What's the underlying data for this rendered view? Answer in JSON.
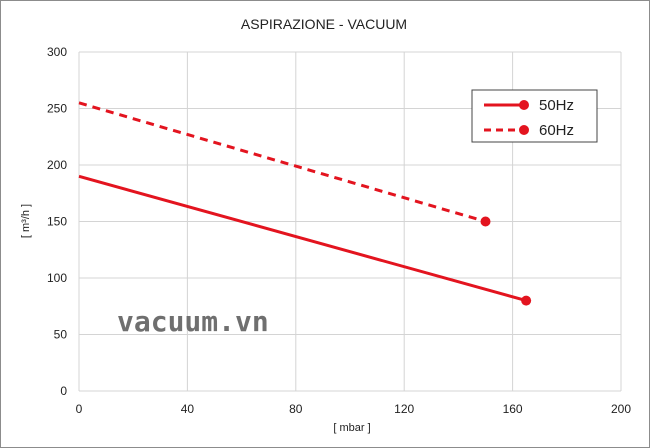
{
  "chart_data": {
    "type": "line",
    "title": "ASPIRAZIONE - VACUUM",
    "xlabel": "[ mbar ]",
    "ylabel": "[ m³/h ]",
    "xlim": [
      0,
      200
    ],
    "ylim": [
      0,
      300
    ],
    "x_ticks": [
      "0",
      "40",
      "80",
      "120",
      "160",
      "200"
    ],
    "y_ticks": [
      "0",
      "50",
      "100",
      "150",
      "200",
      "250",
      "300"
    ],
    "grid": true,
    "legend_position": "top-right",
    "series": [
      {
        "name": "50Hz",
        "style": "solid",
        "color": "#e3141f",
        "x": [
          0,
          165
        ],
        "y": [
          190,
          80
        ]
      },
      {
        "name": "60Hz",
        "style": "dashed",
        "color": "#e3141f",
        "x": [
          0,
          150
        ],
        "y": [
          255,
          150
        ]
      }
    ]
  },
  "watermark": {
    "text": "vacuum.vn",
    "color": "#6f6f6f"
  }
}
